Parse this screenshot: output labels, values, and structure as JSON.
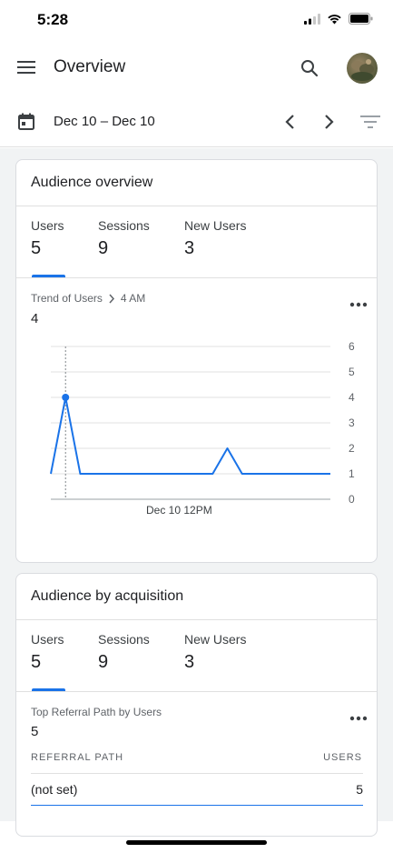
{
  "status_bar": {
    "time": "5:28"
  },
  "app_bar": {
    "title": "Overview",
    "icons": [
      "menu-icon",
      "search-icon",
      "avatar"
    ]
  },
  "date_bar": {
    "range": "Dec 10 – Dec 10",
    "icons": [
      "calendar-icon",
      "chevron-left-icon",
      "chevron-right-icon",
      "filter-icon"
    ]
  },
  "audience_overview": {
    "title": "Audience overview",
    "metrics": [
      {
        "label": "Users",
        "value": "5"
      },
      {
        "label": "Sessions",
        "value": "9"
      },
      {
        "label": "New Users",
        "value": "3"
      }
    ],
    "selected_metric": 0,
    "trend": {
      "label": "Trend of Users",
      "time": "4 AM",
      "value": "4"
    }
  },
  "chart_data": {
    "type": "line",
    "series": [
      {
        "values": [
          1,
          4,
          1,
          1,
          1,
          1,
          1,
          1,
          1,
          1,
          1,
          1,
          2,
          1,
          1,
          1,
          1,
          1,
          1,
          1
        ]
      }
    ],
    "y_ticks": [
      "6",
      "5",
      "4",
      "3",
      "2",
      "1",
      "0"
    ],
    "x_tick_label": "Dec 10 12PM",
    "ylim": [
      0,
      6
    ],
    "highlighted_index": 1,
    "grid": true,
    "color": "#1a73e8"
  },
  "audience_acquisition": {
    "title": "Audience by acquisition",
    "metrics": [
      {
        "label": "Users",
        "value": "5"
      },
      {
        "label": "Sessions",
        "value": "9"
      },
      {
        "label": "New Users",
        "value": "3"
      }
    ],
    "selected_metric": 0,
    "top_referral": {
      "label": "Top Referral Path by Users",
      "value": "5"
    },
    "table": {
      "columns": [
        "REFERRAL PATH",
        "USERS"
      ],
      "rows": [
        {
          "path": "(not set)",
          "users": "5"
        }
      ]
    }
  },
  "colors": {
    "accent": "#1a73e8",
    "background": "#f1f3f4",
    "divider": "#e0e0e0"
  }
}
